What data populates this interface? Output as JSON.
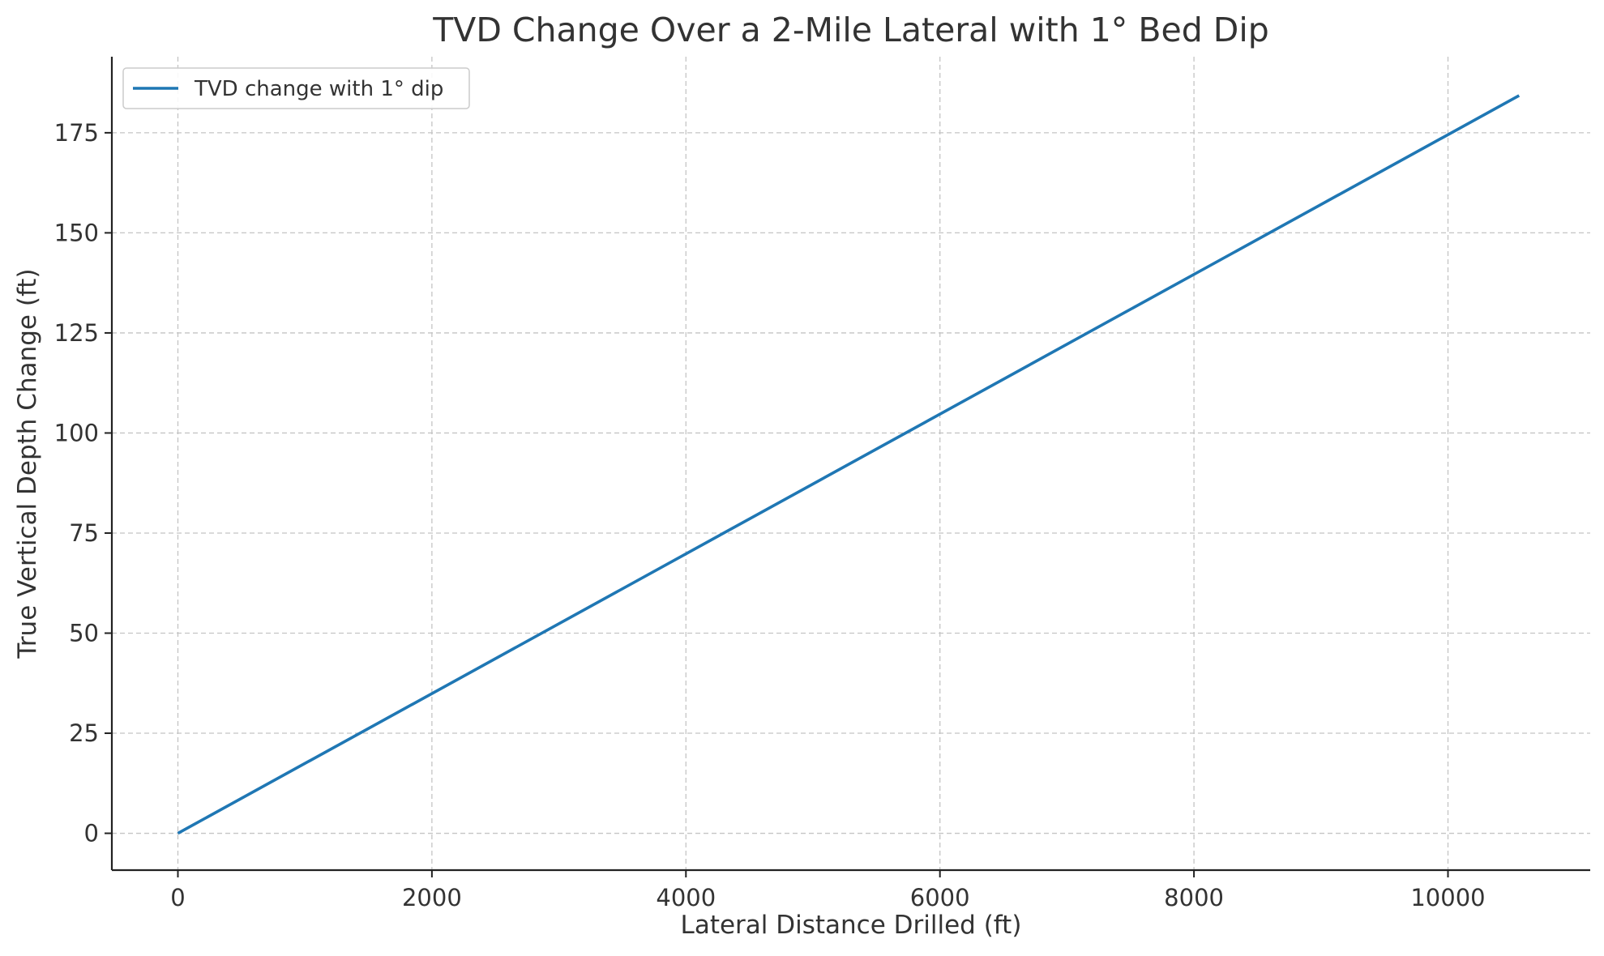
{
  "chart_data": {
    "type": "line",
    "title": "TVD Change Over a 2-Mile Lateral with 1° Bed Dip",
    "xlabel": "Lateral Distance Drilled (ft)",
    "ylabel": "True Vertical Depth Change (ft)",
    "xlim": [
      -520,
      11120
    ],
    "ylim": [
      -9.2,
      194
    ],
    "xticks": [
      0,
      2000,
      4000,
      6000,
      8000,
      10000
    ],
    "yticks": [
      0,
      25,
      50,
      75,
      100,
      125,
      150,
      175
    ],
    "grid": true,
    "legend_position": "top-left",
    "series": [
      {
        "name": "TVD change with 1° dip",
        "color": "#1f77b4",
        "x": [
          0,
          10560
        ],
        "y": [
          0,
          184.3
        ]
      }
    ]
  }
}
